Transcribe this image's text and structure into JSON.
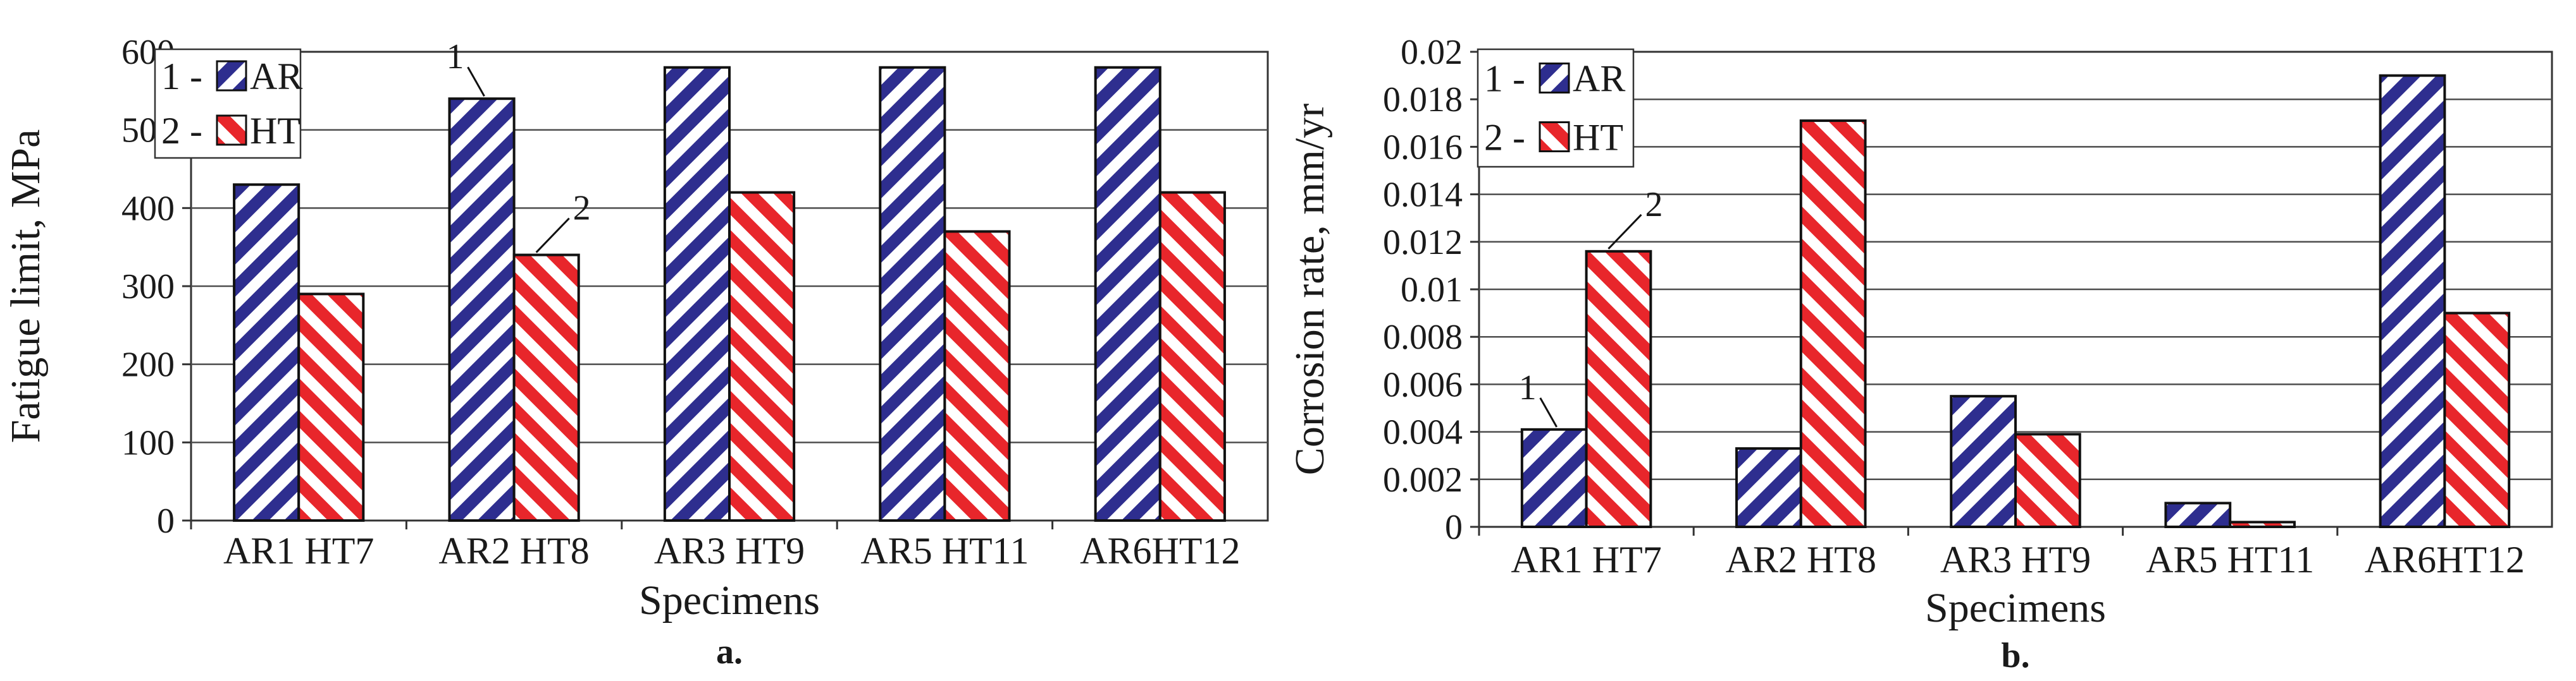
{
  "colors": {
    "ar": "#2e2e8f",
    "ht": "#e8262b",
    "grid": "#4d4d4d",
    "axis": "#333333",
    "bar_outline": "#111111"
  },
  "legend": [
    {
      "prefix": "1 -",
      "label": "AR",
      "pattern": "ar"
    },
    {
      "prefix": "2 -",
      "label": "HT",
      "pattern": "ht"
    }
  ],
  "callouts": {
    "ar": "1",
    "ht": "2"
  },
  "chart_data": [
    {
      "type": "bar",
      "panel": "a.",
      "xlabel": "Specimens",
      "ylabel": "Fatigue limit, MPa",
      "ylim": [
        0,
        600
      ],
      "yticks": [
        "0",
        "100",
        "200",
        "300",
        "400",
        "500",
        "600"
      ],
      "grid": true,
      "legend_position": "top-left",
      "categories": [
        "AR1 HT7",
        "AR2 HT8",
        "AR3 HT9",
        "AR5 HT11",
        "AR6HT12"
      ],
      "series": [
        {
          "name": "AR",
          "values": [
            430,
            540,
            580,
            580,
            580
          ]
        },
        {
          "name": "HT",
          "values": [
            290,
            340,
            420,
            370,
            420
          ]
        }
      ],
      "callout_category": 1
    },
    {
      "type": "bar",
      "panel": "b.",
      "xlabel": "Specimens",
      "ylabel": "Corrosion rate,  mm/yr",
      "ylim": [
        0,
        0.02
      ],
      "yticks": [
        "0",
        "0.002",
        "0.004",
        "0.006",
        "0.008",
        "0.01",
        "0.012",
        "0.014",
        "0.016",
        "0.018",
        "0.02"
      ],
      "grid": true,
      "legend_position": "top-left",
      "categories": [
        "AR1 HT7",
        "AR2 HT8",
        "AR3 HT9",
        "AR5 HT11",
        "AR6HT12"
      ],
      "series": [
        {
          "name": "AR",
          "values": [
            0.0041,
            0.0033,
            0.0055,
            0.001,
            0.019
          ]
        },
        {
          "name": "HT",
          "values": [
            0.0116,
            0.0171,
            0.0039,
            0.0002,
            0.009
          ]
        }
      ],
      "callout_category": 0
    }
  ]
}
